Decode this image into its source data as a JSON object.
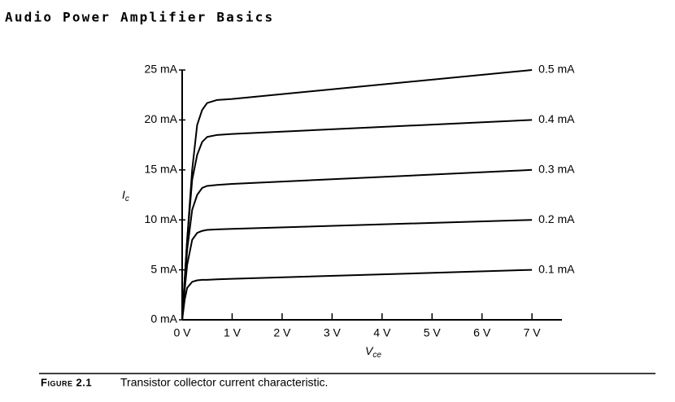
{
  "header": {
    "title": "Audio Power Amplifier Basics"
  },
  "caption": {
    "label": "Figure 2.1",
    "text": "Transistor collector current characteristic."
  },
  "chart_data": {
    "type": "line",
    "ylabel": "I",
    "ylabel_sub": "c",
    "xlabel": "V",
    "xlabel_sub": "ce",
    "color": "#000000",
    "x": [
      0,
      0.05,
      0.1,
      0.2,
      0.3,
      0.4,
      0.5,
      0.7,
      1,
      7
    ],
    "series": [
      {
        "name": "0.5 mA",
        "values": [
          0,
          4,
          8,
          15,
          19.5,
          21,
          21.7,
          22,
          22.1,
          25
        ]
      },
      {
        "name": "0.4 mA",
        "values": [
          0,
          4,
          8,
          14,
          16.5,
          17.8,
          18.3,
          18.5,
          18.6,
          20
        ]
      },
      {
        "name": "0.3 mA",
        "values": [
          0,
          3.5,
          7,
          11,
          12.5,
          13.2,
          13.4,
          13.5,
          13.6,
          15
        ]
      },
      {
        "name": "0.2 mA",
        "values": [
          0,
          3,
          5.5,
          8,
          8.7,
          8.9,
          9,
          9.05,
          9.1,
          10
        ]
      },
      {
        "name": "0.1 mA",
        "values": [
          0,
          2,
          3.2,
          3.8,
          3.95,
          4,
          4,
          4.05,
          4.1,
          5
        ]
      }
    ],
    "xlim": [
      0,
      7.6
    ],
    "ylim": [
      0,
      25
    ],
    "xticks": [
      {
        "value": 0,
        "label": "0 V"
      },
      {
        "value": 1,
        "label": "1 V"
      },
      {
        "value": 2,
        "label": "2 V"
      },
      {
        "value": 3,
        "label": "3 V"
      },
      {
        "value": 4,
        "label": "4 V"
      },
      {
        "value": 5,
        "label": "5 V"
      },
      {
        "value": 6,
        "label": "6 V"
      },
      {
        "value": 7,
        "label": "7 V"
      }
    ],
    "yticks": [
      {
        "value": 0,
        "label": "0 mA"
      },
      {
        "value": 5,
        "label": "5 mA"
      },
      {
        "value": 10,
        "label": "10 mA"
      },
      {
        "value": 15,
        "label": "15 mA"
      },
      {
        "value": 20,
        "label": "20 mA"
      },
      {
        "value": 25,
        "label": "25 mA"
      }
    ]
  }
}
